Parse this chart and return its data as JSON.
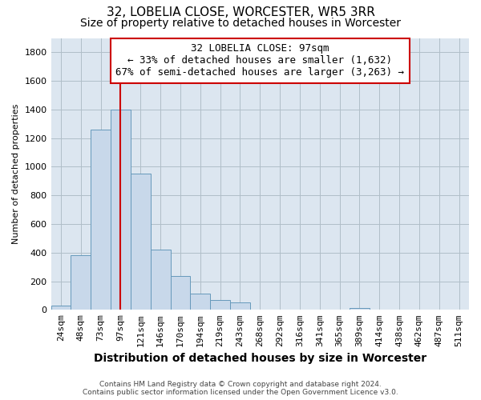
{
  "title": "32, LOBELIA CLOSE, WORCESTER, WR5 3RR",
  "subtitle": "Size of property relative to detached houses in Worcester",
  "xlabel": "Distribution of detached houses by size in Worcester",
  "ylabel": "Number of detached properties",
  "footer_line1": "Contains HM Land Registry data © Crown copyright and database right 2024.",
  "footer_line2": "Contains public sector information licensed under the Open Government Licence v3.0.",
  "annotation_line1": "32 LOBELIA CLOSE: 97sqm",
  "annotation_line2": "← 33% of detached houses are smaller (1,632)",
  "annotation_line3": "67% of semi-detached houses are larger (3,263) →",
  "bar_color": "#c8d8ea",
  "bar_edge_color": "#6699bb",
  "red_line_color": "#cc0000",
  "red_line_index": 3,
  "ylim": [
    0,
    1900
  ],
  "yticks": [
    0,
    200,
    400,
    600,
    800,
    1000,
    1200,
    1400,
    1600,
    1800
  ],
  "bins": [
    "24sqm",
    "48sqm",
    "73sqm",
    "97sqm",
    "121sqm",
    "146sqm",
    "170sqm",
    "194sqm",
    "219sqm",
    "243sqm",
    "268sqm",
    "292sqm",
    "316sqm",
    "341sqm",
    "365sqm",
    "389sqm",
    "414sqm",
    "438sqm",
    "462sqm",
    "487sqm",
    "511sqm"
  ],
  "values": [
    28,
    380,
    1260,
    1400,
    950,
    420,
    235,
    115,
    70,
    50,
    0,
    0,
    0,
    0,
    0,
    15,
    0,
    0,
    0,
    0,
    0
  ],
  "background_color": "#ffffff",
  "plot_bg_color": "#dce6f0",
  "grid_color": "#b0bec8",
  "title_fontsize": 11,
  "subtitle_fontsize": 10,
  "annotation_fontsize": 9,
  "ylabel_fontsize": 8,
  "xlabel_fontsize": 10,
  "tick_fontsize": 8,
  "annotation_box_color": "#ffffff",
  "annotation_box_edge": "#cc0000"
}
